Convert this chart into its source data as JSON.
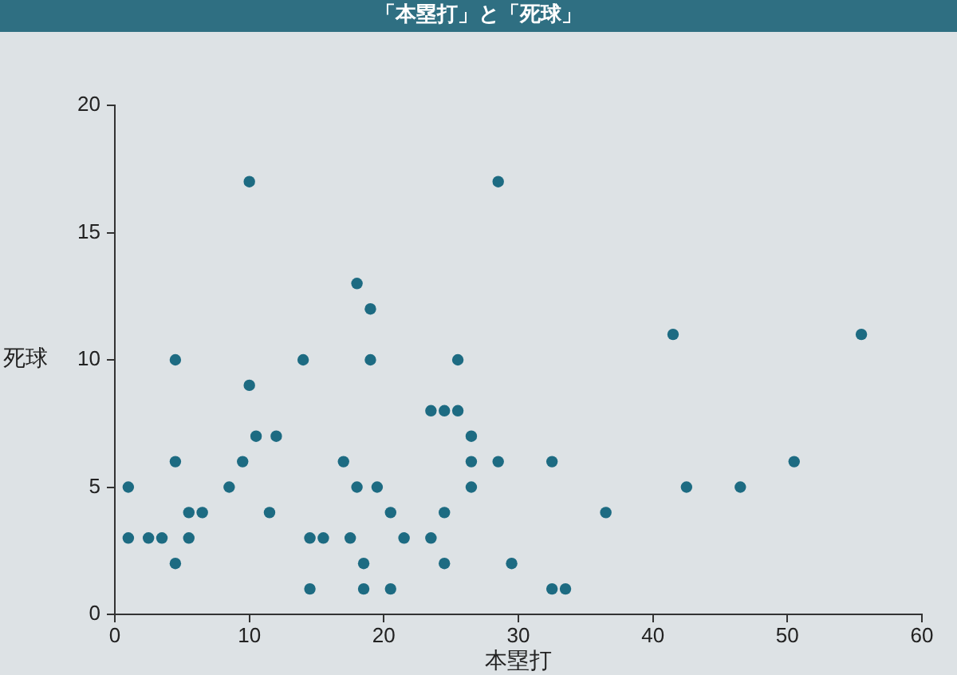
{
  "chart_data": {
    "type": "scatter",
    "title": "「本塁打」と「死球」",
    "xlabel": "本塁打",
    "ylabel": "死球",
    "xlim": [
      0,
      60
    ],
    "xticks": [
      0,
      10,
      20,
      30,
      40,
      50,
      60
    ],
    "ylim": [
      0,
      20
    ],
    "yticks": [
      0,
      5,
      10,
      15,
      20
    ],
    "marker": "circle",
    "series": [
      {
        "color": "#1d6b82",
        "x": [
          1,
          1,
          2.5,
          3.5,
          4.5,
          4.5,
          4.5,
          5.5,
          5.5,
          6.5,
          8.5,
          9.5,
          10,
          10,
          10.5,
          12,
          11.5,
          14,
          14.5,
          14.5,
          15.5,
          17,
          18,
          17.5,
          18,
          19,
          19,
          18.5,
          18.5,
          19.5,
          28.5,
          25.5,
          23.5,
          24.5,
          25.5,
          26.5,
          26.5,
          28.5,
          32.5,
          26.5,
          20.5,
          24.5,
          36.5,
          21.5,
          23.5,
          24.5,
          29.5,
          20.5,
          32.5,
          33.5,
          41.5,
          55.5,
          50.5,
          42.5,
          46.5
        ],
        "values": [
          5,
          3,
          3,
          3,
          2,
          6,
          10,
          4,
          3,
          4,
          5,
          6,
          9,
          17,
          7,
          7,
          4,
          10,
          1,
          3,
          3,
          6,
          5,
          3,
          13,
          12,
          10,
          2,
          1,
          5,
          17,
          10,
          8,
          8,
          8,
          7,
          6,
          6,
          6,
          5,
          4,
          4,
          4,
          3,
          3,
          2,
          2,
          1,
          1,
          1,
          11,
          11,
          6,
          5,
          5
        ]
      }
    ]
  }
}
